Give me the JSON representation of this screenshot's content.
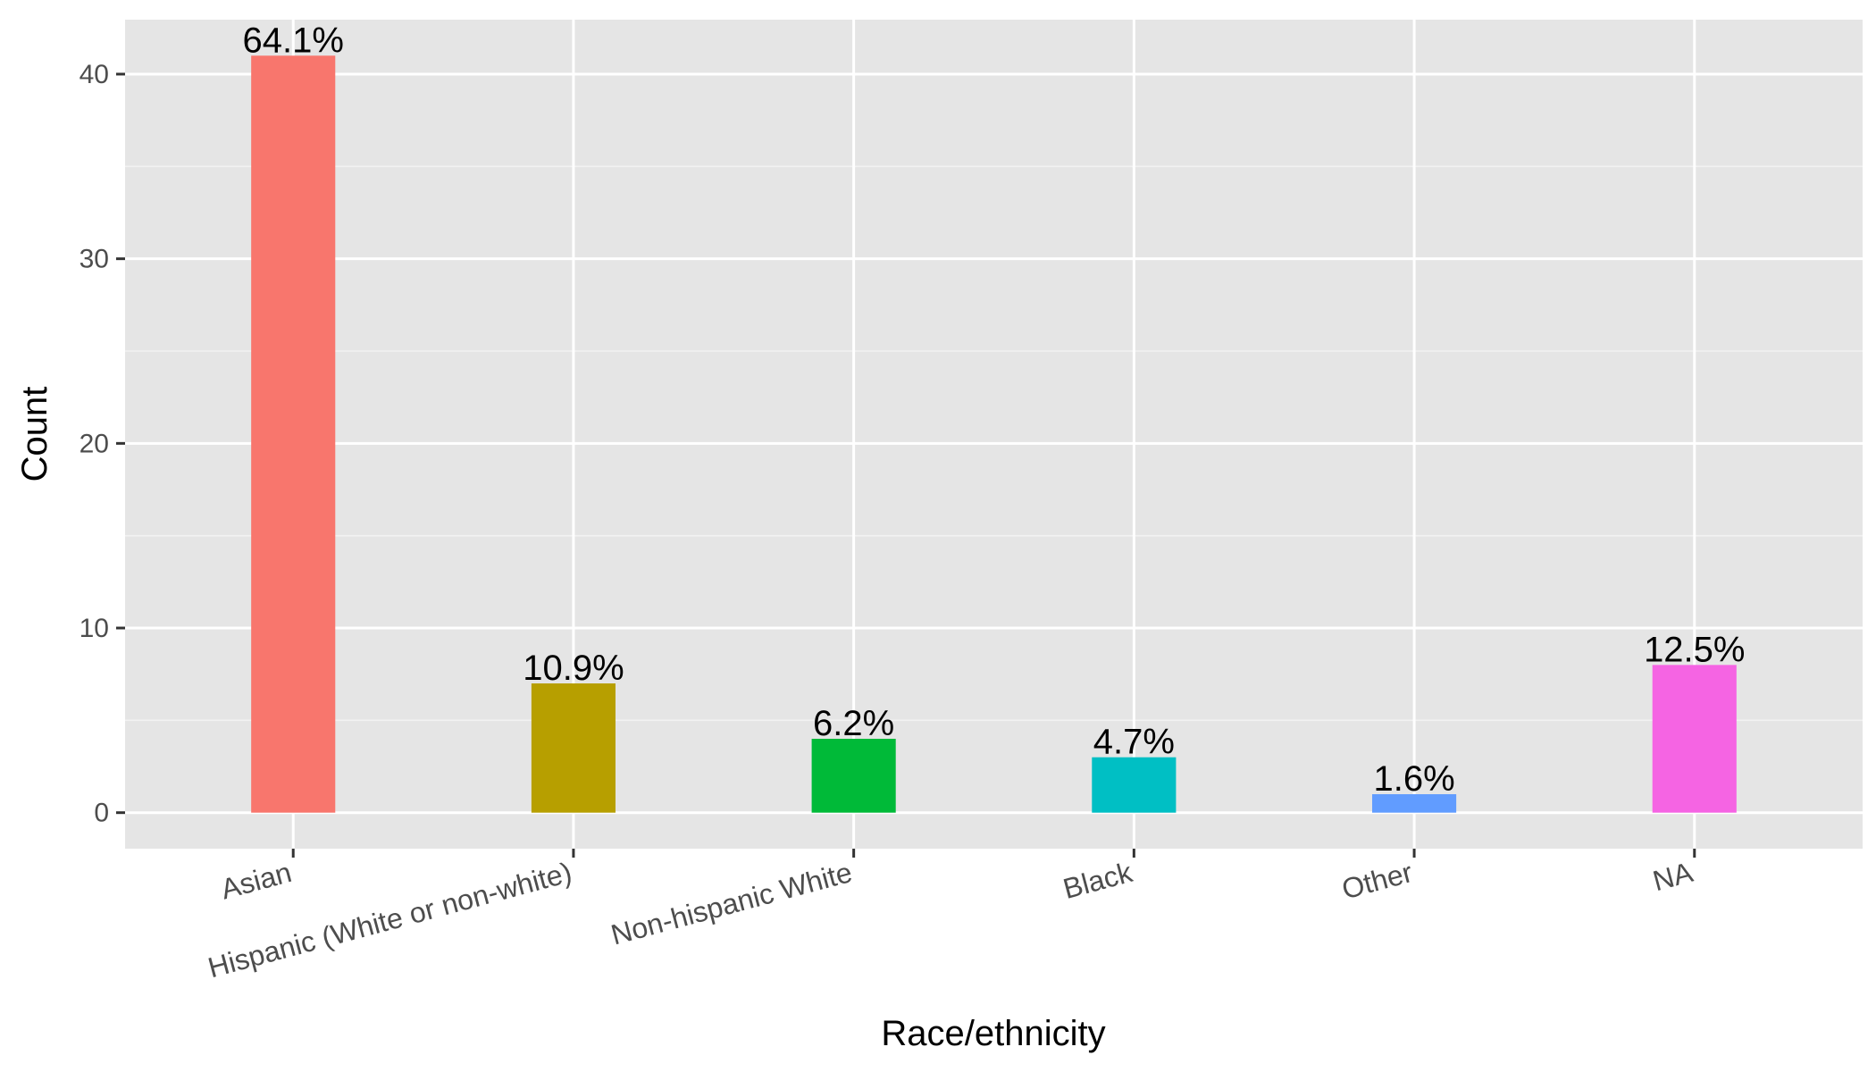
{
  "chart_data": {
    "type": "bar",
    "xlabel": "Race/ethnicity",
    "ylabel": "Count",
    "categories": [
      "Asian",
      "Hispanic (White or non-white)",
      "Non-hispanic White",
      "Black",
      "Other",
      "NA"
    ],
    "values": [
      41,
      7,
      4,
      3,
      1,
      8
    ],
    "labels": [
      "64.1%",
      "10.9%",
      "6.2%",
      "4.7%",
      "1.6%",
      "12.5%"
    ],
    "colors": [
      "#F8766D",
      "#B79F00",
      "#00BA38",
      "#00BFC4",
      "#619CFF",
      "#F564E3"
    ],
    "y_ticks": [
      0,
      10,
      20,
      30,
      40
    ],
    "ylim": [
      -1.95,
      42.95
    ],
    "grid": true,
    "legend": "none"
  }
}
